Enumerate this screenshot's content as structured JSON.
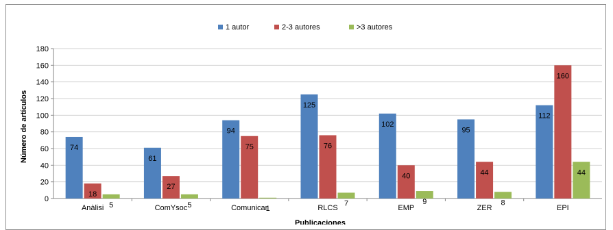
{
  "chart_data": {
    "type": "bar",
    "xlabel": "Publicaciones",
    "ylabel": "Número de artículos",
    "ylim": [
      0,
      180
    ],
    "yticks": [
      0,
      20,
      40,
      60,
      80,
      100,
      120,
      140,
      160,
      180
    ],
    "grid": true,
    "legend_position": "top-center",
    "categories": [
      "Anàlisi",
      "ComYsoc",
      "Comunicar",
      "RLCS",
      "EMP",
      "ZER",
      "EPI"
    ],
    "series": [
      {
        "name": "1 autor",
        "color": "#4f81bd",
        "values": [
          74,
          61,
          94,
          125,
          102,
          95,
          112
        ]
      },
      {
        "name": "2-3 autores",
        "color": "#c0504d",
        "values": [
          18,
          27,
          75,
          76,
          40,
          44,
          160
        ]
      },
      {
        "name": ">3 autores",
        "color": "#9bbb59",
        "values": [
          5,
          5,
          1,
          7,
          9,
          8,
          44
        ]
      }
    ]
  }
}
